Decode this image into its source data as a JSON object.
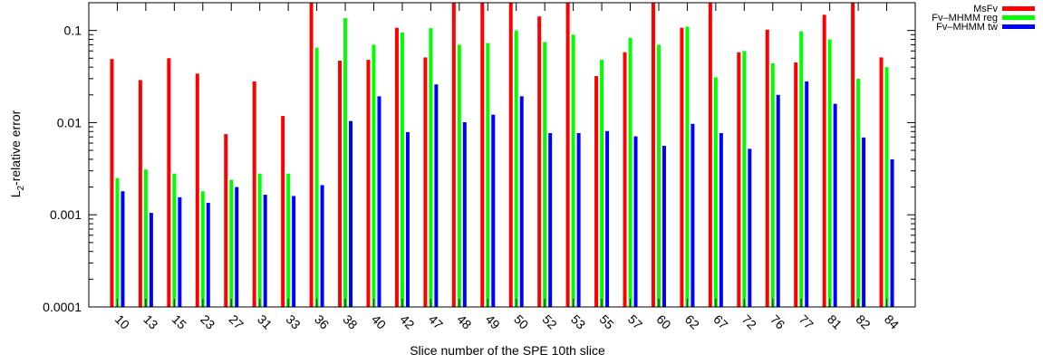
{
  "chart_data": {
    "type": "bar",
    "xlabel": "Slice number of the SPE 10th slice",
    "ylabel_main": "L",
    "ylabel_sub": "2",
    "ylabel_rest": "-relative error",
    "yscale": "log",
    "ylim": [
      0.0001,
      0.2
    ],
    "yticks": [
      {
        "value": 0.0001,
        "label": "0.0001"
      },
      {
        "value": 0.001,
        "label": "0.001"
      },
      {
        "value": 0.01,
        "label": "0.01"
      },
      {
        "value": 0.1,
        "label": "0.1"
      }
    ],
    "legend_position": "top-right",
    "categories": [
      "10",
      "13",
      "15",
      "23",
      "27",
      "31",
      "33",
      "36",
      "38",
      "40",
      "42",
      "47",
      "48",
      "49",
      "50",
      "52",
      "53",
      "55",
      "57",
      "60",
      "62",
      "67",
      "72",
      "76",
      "77",
      "81",
      "82",
      "84"
    ],
    "series": [
      {
        "name": "MsFv",
        "color": "#ff0000",
        "values": [
          0.049,
          0.029,
          0.05,
          0.034,
          0.0075,
          0.028,
          0.0118,
          0.2,
          0.047,
          0.048,
          0.107,
          0.051,
          0.2,
          0.2,
          0.2,
          0.142,
          0.2,
          0.032,
          0.058,
          0.2,
          0.107,
          0.2,
          0.058,
          0.102,
          0.045,
          0.148,
          0.2,
          0.051
        ]
      },
      {
        "name": "Fv–MHMM reg",
        "color": "#00ff00",
        "values": [
          0.0025,
          0.0031,
          0.0028,
          0.0018,
          0.0024,
          0.0028,
          0.0028,
          0.065,
          0.136,
          0.07,
          0.095,
          0.106,
          0.07,
          0.073,
          0.1,
          0.075,
          0.09,
          0.048,
          0.083,
          0.07,
          0.11,
          0.031,
          0.06,
          0.044,
          0.098,
          0.08,
          0.03,
          0.04
        ]
      },
      {
        "name": "Fv–MHMM tw",
        "color": "#0000ff",
        "values": [
          0.0018,
          0.00105,
          0.00155,
          0.00135,
          0.002,
          0.00165,
          0.0016,
          0.0021,
          0.0104,
          0.0193,
          0.0079,
          0.026,
          0.0101,
          0.0122,
          0.0193,
          0.0077,
          0.0077,
          0.0081,
          0.0071,
          0.0056,
          0.0097,
          0.0077,
          0.0052,
          0.02,
          0.028,
          0.016,
          0.0069,
          0.004
        ]
      }
    ]
  }
}
